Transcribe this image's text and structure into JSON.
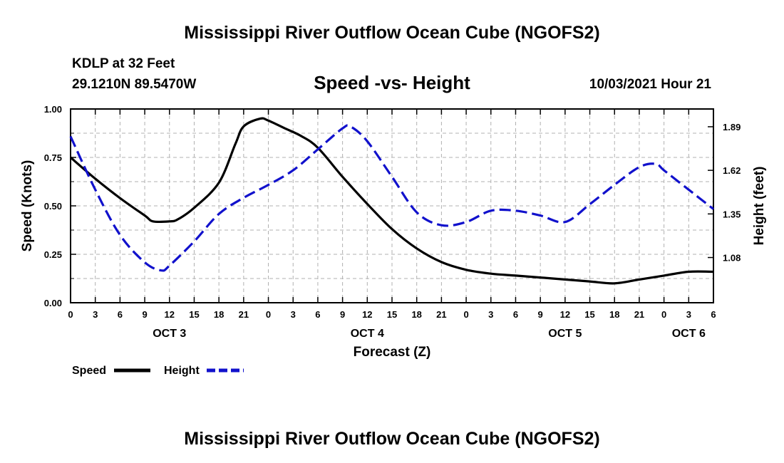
{
  "title": "Mississippi River Outflow Ocean Cube (NGOFS2)",
  "footer_title": "Mississippi River Outflow Ocean Cube (NGOFS2)",
  "station": "KDLP at 32 Feet",
  "coords": "29.1210N  89.5470W",
  "subtitle": "Speed -vs- Height",
  "datetime": "10/03/2021 Hour 21",
  "colors": {
    "speed": "#000000",
    "height": "#1111cc",
    "grid": "#b0b0b0"
  },
  "chart_data": {
    "type": "line",
    "title": "Speed -vs- Height",
    "xlabel": "Forecast (Z)",
    "ylabel": "Speed (Knots)",
    "y2label": "Height (feet)",
    "x_range_hours": [
      0,
      78
    ],
    "x_tick_hours": [
      0,
      3,
      6,
      9,
      12,
      15,
      18,
      21,
      24,
      27,
      30,
      33,
      36,
      39,
      42,
      45,
      48,
      51,
      54,
      57,
      60,
      63,
      66,
      69,
      72,
      75,
      78
    ],
    "x_tick_labels": [
      "0",
      "3",
      "6",
      "9",
      "12",
      "15",
      "18",
      "21",
      "0",
      "3",
      "6",
      "9",
      "12",
      "15",
      "18",
      "21",
      "0",
      "3",
      "6",
      "9",
      "12",
      "15",
      "18",
      "21",
      "0",
      "3",
      "6"
    ],
    "day_labels": [
      {
        "label": "OCT 3",
        "hour": 12
      },
      {
        "label": "OCT 4",
        "hour": 36
      },
      {
        "label": "OCT 5",
        "hour": 60
      },
      {
        "label": "OCT 6",
        "hour": 75
      }
    ],
    "ylim": [
      0,
      1
    ],
    "y_ticks": [
      0,
      0.25,
      0.5,
      0.75,
      1.0
    ],
    "y_tick_labels": [
      "0.00",
      "0.25",
      "0.50",
      "0.75",
      "1.00"
    ],
    "y2lim": [
      0.8,
      2.0
    ],
    "y2_ticks": [
      1.08,
      1.35,
      1.62,
      1.89
    ],
    "y2_tick_labels": [
      "1.08",
      "1.35",
      "1.62",
      "1.89"
    ],
    "series": [
      {
        "name": "Speed",
        "axis": "left",
        "style": "solid",
        "x": [
          0,
          3,
          6,
          9,
          10,
          12,
          13,
          15,
          18,
          20,
          21,
          23,
          24,
          26,
          28,
          30,
          33,
          36,
          39,
          42,
          45,
          48,
          51,
          54,
          57,
          60,
          63,
          66,
          69,
          72,
          75,
          78
        ],
        "values": [
          0.75,
          0.64,
          0.54,
          0.45,
          0.42,
          0.42,
          0.43,
          0.49,
          0.62,
          0.82,
          0.91,
          0.95,
          0.94,
          0.9,
          0.86,
          0.8,
          0.65,
          0.51,
          0.38,
          0.28,
          0.21,
          0.17,
          0.15,
          0.14,
          0.13,
          0.12,
          0.11,
          0.1,
          0.12,
          0.14,
          0.16,
          0.16
        ]
      },
      {
        "name": "Height",
        "axis": "right",
        "style": "dashed",
        "x": [
          0,
          3,
          6,
          9,
          11,
          12,
          15,
          18,
          21,
          24,
          27,
          30,
          33,
          34,
          36,
          39,
          42,
          45,
          48,
          51,
          54,
          57,
          60,
          63,
          66,
          69,
          71,
          72,
          75,
          78
        ],
        "values": [
          1.83,
          1.5,
          1.22,
          1.05,
          1.0,
          1.03,
          1.18,
          1.35,
          1.45,
          1.53,
          1.62,
          1.75,
          1.88,
          1.89,
          1.8,
          1.58,
          1.36,
          1.28,
          1.3,
          1.37,
          1.37,
          1.34,
          1.3,
          1.41,
          1.53,
          1.64,
          1.66,
          1.62,
          1.5,
          1.38
        ]
      }
    ]
  },
  "legend": {
    "speed_label": "Speed",
    "height_label": "Height"
  }
}
